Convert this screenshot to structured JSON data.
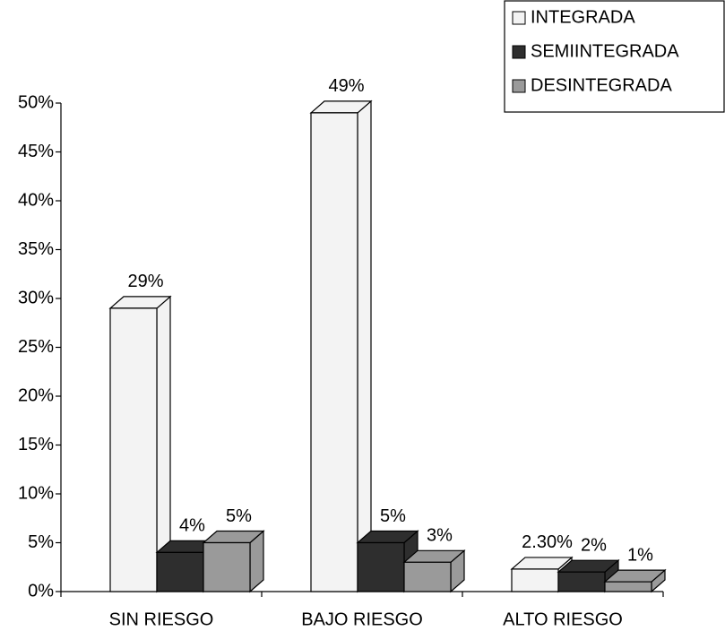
{
  "chart_data": {
    "type": "bar3d",
    "categories": [
      "SIN RIESGO",
      "BAJO RIESGO",
      "ALTO RIESGO"
    ],
    "series": [
      {
        "name": "INTEGRADA",
        "color": "#f3f3f3",
        "values": [
          29,
          49,
          2.3
        ],
        "value_labels": [
          "29%",
          "49%",
          "2.30%"
        ]
      },
      {
        "name": "SEMIINTEGRADA",
        "color": "#2e2e2e",
        "values": [
          4,
          5,
          2
        ],
        "value_labels": [
          "4%",
          "5%",
          "2%"
        ]
      },
      {
        "name": "DESINTEGRADA",
        "color": "#9a9a9a",
        "values": [
          5,
          3,
          1
        ],
        "value_labels": [
          "5%",
          "3%",
          "1%"
        ]
      }
    ],
    "ylim": [
      0,
      50
    ],
    "yticks": [
      {
        "value": 0,
        "label": "0%"
      },
      {
        "value": 5,
        "label": "5%"
      },
      {
        "value": 10,
        "label": "10%"
      },
      {
        "value": 15,
        "label": "15%"
      },
      {
        "value": 20,
        "label": "20%"
      },
      {
        "value": 25,
        "label": "25%"
      },
      {
        "value": 30,
        "label": "30%"
      },
      {
        "value": 35,
        "label": "35%"
      },
      {
        "value": 40,
        "label": "40%"
      },
      {
        "value": 45,
        "label": "45%"
      },
      {
        "value": 50,
        "label": "50%"
      }
    ],
    "legend": "top-right"
  }
}
